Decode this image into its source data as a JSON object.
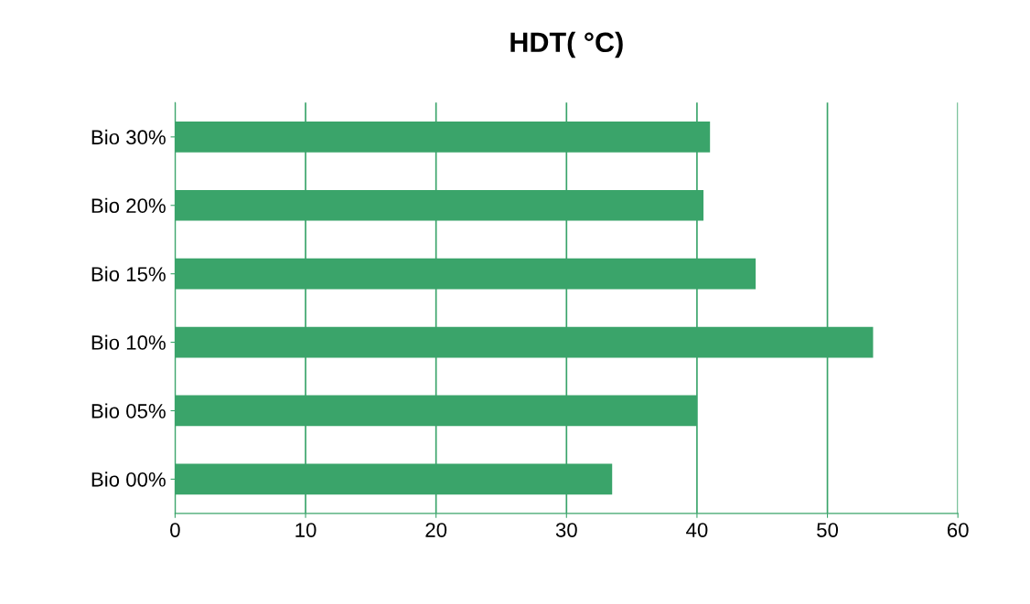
{
  "chart_data": {
    "type": "bar",
    "orientation": "horizontal",
    "title": "HDT( °C)",
    "categories": [
      "Bio 30%",
      "Bio 20%",
      "Bio 15%",
      "Bio 10%",
      "Bio 05%",
      "Bio 00%"
    ],
    "values": [
      41,
      40.5,
      44.5,
      53.5,
      40,
      33.5
    ],
    "color": "#3aa46a",
    "xlim": [
      0,
      60
    ],
    "xticks": [
      0,
      10,
      20,
      30,
      40,
      50,
      60
    ],
    "grid": "x"
  }
}
